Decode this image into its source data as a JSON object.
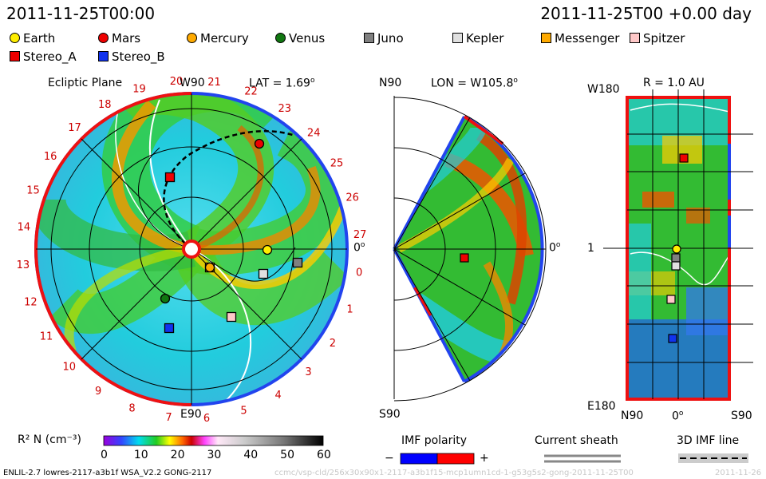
{
  "header": {
    "date_left": "2011-11-25T00:00",
    "date_right": "2011-11-25T00 +0.00 day"
  },
  "legend": [
    {
      "label": "Earth",
      "shape": "circle",
      "color": "#ffee00"
    },
    {
      "label": "Mars",
      "shape": "circle",
      "color": "#ee0000"
    },
    {
      "label": "Mercury",
      "shape": "circle",
      "color": "#ffaa00"
    },
    {
      "label": "Venus",
      "shape": "circle",
      "color": "#117711"
    },
    {
      "label": "Juno",
      "shape": "square",
      "color": "#808080"
    },
    {
      "label": "Kepler",
      "shape": "square",
      "color": "#e0e0e0"
    },
    {
      "label": "Messenger",
      "shape": "square",
      "color": "#ffaa00"
    },
    {
      "label": "Spitzer",
      "shape": "square",
      "color": "#ffc8c8"
    },
    {
      "label": "Stereo_A",
      "shape": "square",
      "color": "#ee0000"
    },
    {
      "label": "Stereo_B",
      "shape": "square",
      "color": "#1133ee"
    }
  ],
  "panels": {
    "ecliptic": {
      "title": "Ecliptic Plane",
      "lat_label": "LAT = 1.69",
      "top": "W90",
      "bottom": "E90",
      "right": "0",
      "ticks": [
        "19",
        "20",
        "21",
        "22",
        "23",
        "24",
        "25",
        "26",
        "27",
        "0",
        "1",
        "2",
        "3",
        "4",
        "5",
        "6",
        "7",
        "8",
        "9",
        "10",
        "11",
        "12",
        "13",
        "14",
        "15",
        "16",
        "17",
        "18"
      ]
    },
    "meridional": {
      "top": "N90",
      "bottom": "S90",
      "lon_label": "LON = W105.8",
      "right": "0"
    },
    "sphere": {
      "radius_label": "R = 1.0 AU",
      "top_left": "W180",
      "bottom_left": "E180",
      "middle_left": "1",
      "bottom_labels": [
        "N90",
        "0",
        "S90"
      ]
    }
  },
  "colorbar": {
    "label": "R² N (cm⁻³)",
    "ticks": [
      "0",
      "10",
      "20",
      "30",
      "40",
      "50",
      "60"
    ]
  },
  "bottom_legends": {
    "imf": {
      "title": "IMF polarity",
      "minus": "−",
      "plus": "+",
      "neg_color": "#0000ff",
      "pos_color": "#ff0000"
    },
    "sheath": {
      "title": "Current sheath"
    },
    "imfline": {
      "title": "3D IMF line"
    }
  },
  "footer": {
    "run": "ENLIL-2.7 lowres-2117-a3b1f WSA_V2.2 GONG-2117",
    "watermark": "ccmc/vsp-cld/256x30x90x1-2117-a3b1f15-mcp1umn1cd-1-g53g5s2-gong-2011-11-25T00",
    "watermark_right": "2011-11-26"
  },
  "chart_data": [
    {
      "type": "heatmap",
      "title": "Ecliptic Plane",
      "annotation": "LAT = 1.69",
      "quantity": "R² N (cm⁻³)",
      "range": [
        0,
        60
      ],
      "bodies": [
        {
          "name": "Earth",
          "type": "planet"
        },
        {
          "name": "Mars",
          "type": "planet"
        },
        {
          "name": "Mercury",
          "type": "planet"
        },
        {
          "name": "Venus",
          "type": "planet"
        },
        {
          "name": "Juno",
          "type": "spacecraft"
        },
        {
          "name": "Kepler",
          "type": "spacecraft"
        },
        {
          "name": "Messenger",
          "type": "spacecraft"
        },
        {
          "name": "Spitzer",
          "type": "spacecraft"
        },
        {
          "name": "Stereo_A",
          "type": "spacecraft"
        },
        {
          "name": "Stereo_B",
          "type": "spacecraft"
        }
      ]
    },
    {
      "type": "heatmap",
      "annotation": "LON = W105.8",
      "quantity": "R² N (cm⁻³)",
      "range": [
        0,
        60
      ]
    },
    {
      "type": "heatmap",
      "annotation": "R = 1.0 AU",
      "quantity": "R² N (cm⁻³)",
      "range": [
        0,
        60
      ]
    }
  ]
}
